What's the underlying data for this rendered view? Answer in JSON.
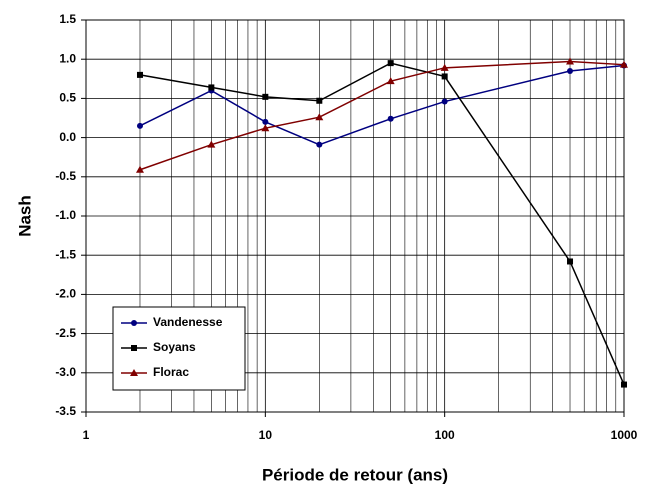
{
  "chart_data": {
    "type": "line",
    "x_label": "Période de retour (ans)",
    "y_label": "Nash",
    "x": [
      2,
      5,
      10,
      20,
      50,
      100,
      500,
      1000
    ],
    "series": [
      {
        "name": "Vandenesse",
        "color": "#000080",
        "marker": "circle",
        "values": [
          0.15,
          0.6,
          0.2,
          -0.09,
          0.24,
          0.46,
          0.85,
          0.92
        ]
      },
      {
        "name": "Soyans",
        "color": "#000000",
        "marker": "square",
        "values": [
          0.8,
          0.64,
          0.52,
          0.47,
          0.95,
          0.78,
          -1.58,
          -3.15
        ]
      },
      {
        "name": "Florac",
        "color": "#800000",
        "marker": "triangle",
        "values": [
          -0.41,
          -0.09,
          0.12,
          0.26,
          0.72,
          0.89,
          0.97,
          0.93
        ]
      }
    ],
    "xlim": [
      1,
      1000
    ],
    "xticks": [
      1,
      10,
      100,
      1000
    ],
    "log_x": true,
    "ylim": [
      -3.5,
      1.5
    ],
    "yticks": [
      1.5,
      {
        "value": 1,
        "label": "1.0"
      },
      0.5,
      {
        "value": 0,
        "label": "0.0"
      },
      -0.5,
      {
        "value": -1,
        "label": "-1.0"
      },
      -1.5,
      {
        "value": -2,
        "label": "-2.0"
      },
      -2.5,
      {
        "value": -3,
        "label": "-3.0"
      },
      -3.5
    ],
    "grid": true,
    "legend": "lower left"
  }
}
